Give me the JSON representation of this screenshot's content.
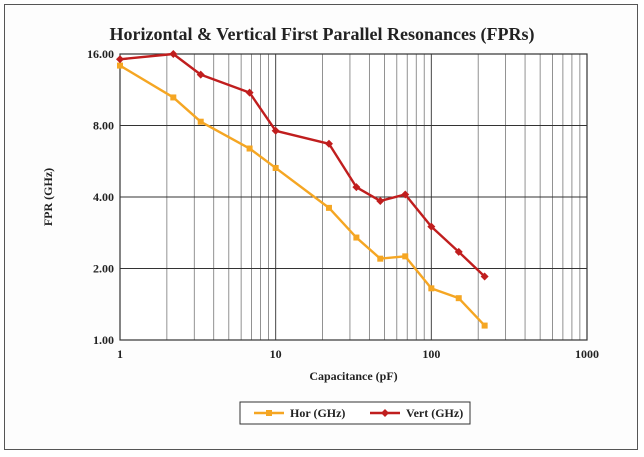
{
  "chart_data": {
    "type": "line",
    "title": "Horizontal & Vertical First Parallel Resonances (FPRs)",
    "xlabel": "Capacitance (pF)",
    "ylabel": "FPR (GHz)",
    "x_scale": "log",
    "y_scale": "log2",
    "xlim": [
      1,
      1000
    ],
    "ylim": [
      1,
      16
    ],
    "x_ticks": [
      "1",
      "10",
      "100",
      "1000"
    ],
    "y_ticks": [
      "1.00",
      "2.00",
      "4.00",
      "8.00",
      "16.00"
    ],
    "grid": true,
    "legend_position": "bottom",
    "series": [
      {
        "name": "Hor (GHz)",
        "color": "#f5a623",
        "marker": "square",
        "points": [
          [
            1,
            14.3
          ],
          [
            2.2,
            10.5
          ],
          [
            3.3,
            8.3
          ],
          [
            6.8,
            6.4
          ],
          [
            10,
            5.3
          ],
          [
            22,
            3.6
          ],
          [
            33,
            2.7
          ],
          [
            47,
            2.2
          ],
          [
            68,
            2.25
          ],
          [
            100,
            1.65
          ],
          [
            150,
            1.5
          ],
          [
            220,
            1.15
          ]
        ]
      },
      {
        "name": "Vert (GHz)",
        "color": "#c01e1e",
        "marker": "diamond",
        "points": [
          [
            1,
            15.2
          ],
          [
            2.2,
            16.0
          ],
          [
            3.3,
            13.1
          ],
          [
            6.8,
            11.0
          ],
          [
            10,
            7.6
          ],
          [
            22,
            6.7
          ],
          [
            33,
            4.4
          ],
          [
            47,
            3.85
          ],
          [
            68,
            4.1
          ],
          [
            100,
            3.0
          ],
          [
            150,
            2.35
          ],
          [
            220,
            1.85
          ]
        ]
      }
    ]
  }
}
